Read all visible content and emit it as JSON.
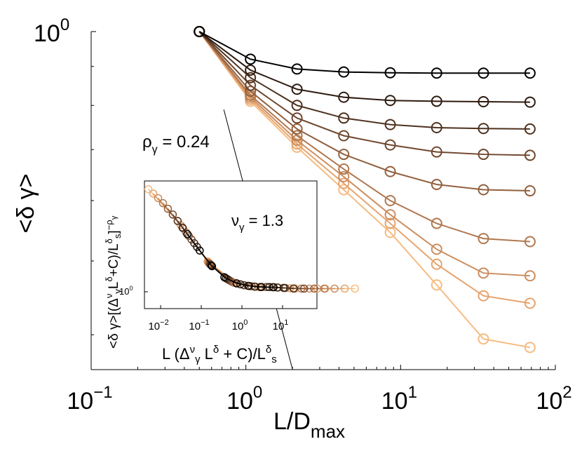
{
  "chart_data": [
    {
      "type": "line",
      "xlabel": "L/D",
      "xlabel_sub": "max",
      "ylabel": "<δ γ>",
      "xscale": "log",
      "yscale": "log",
      "xlim": [
        0.1,
        100
      ],
      "ylim": [
        0.36,
        1.0
      ],
      "x_ticks": [
        {
          "base": "10",
          "exp": "−1",
          "value": 0.1
        },
        {
          "base": "10",
          "exp": "0",
          "value": 1
        },
        {
          "base": "10",
          "exp": "1",
          "value": 10
        },
        {
          "base": "10",
          "exp": "2",
          "value": 100
        }
      ],
      "y_ticks": [
        {
          "base": "10",
          "exp": "0",
          "value": 1.0
        }
      ],
      "grid": false,
      "marker": "open-circle",
      "series": [
        {
          "color": "#000000",
          "x": [
            0.5,
            1.07,
            2.14,
            4.29,
            8.57,
            17.1,
            34.3,
            68.6
          ],
          "y": [
            1.0,
            0.92,
            0.893,
            0.885,
            0.883,
            0.882,
            0.882,
            0.882
          ]
        },
        {
          "color": "#2e1b10",
          "x": [
            0.5,
            1.07,
            2.14,
            4.29,
            8.57,
            17.1,
            34.3,
            68.6
          ],
          "y": [
            1.0,
            0.89,
            0.84,
            0.82,
            0.812,
            0.81,
            0.809,
            0.808
          ]
        },
        {
          "color": "#4f3220",
          "x": [
            0.5,
            1.07,
            2.14,
            4.29,
            8.57,
            17.1,
            34.3,
            68.6
          ],
          "y": [
            1.0,
            0.87,
            0.8,
            0.77,
            0.755,
            0.748,
            0.746,
            0.745
          ]
        },
        {
          "color": "#70482f",
          "x": [
            0.5,
            1.07,
            2.14,
            4.29,
            8.57,
            17.1,
            34.3,
            68.6
          ],
          "y": [
            1.0,
            0.85,
            0.77,
            0.73,
            0.71,
            0.695,
            0.69,
            0.688
          ]
        },
        {
          "color": "#92603e",
          "x": [
            0.5,
            1.07,
            2.14,
            4.29,
            8.57,
            17.1,
            34.3,
            68.6
          ],
          "y": [
            1.0,
            0.835,
            0.745,
            0.69,
            0.655,
            0.63,
            0.62,
            0.618
          ]
        },
        {
          "color": "#b07850",
          "x": [
            0.5,
            1.07,
            2.14,
            4.29,
            8.57,
            17.1,
            34.3,
            68.6
          ],
          "y": [
            1.0,
            0.825,
            0.73,
            0.66,
            0.6,
            0.56,
            0.535,
            0.53
          ]
        },
        {
          "color": "#cc8e60",
          "x": [
            0.5,
            1.07,
            2.14,
            4.29,
            8.57,
            17.1,
            34.3,
            68.6
          ],
          "y": [
            1.0,
            0.82,
            0.72,
            0.645,
            0.575,
            0.518,
            0.482,
            0.478
          ]
        },
        {
          "color": "#e6a46e",
          "x": [
            0.5,
            1.07,
            2.14,
            4.29,
            8.57,
            17.1,
            34.3,
            68.6
          ],
          "y": [
            1.0,
            0.815,
            0.712,
            0.632,
            0.56,
            0.495,
            0.45,
            0.44
          ]
        },
        {
          "color": "#f6bb80",
          "x": [
            0.5,
            1.07,
            2.14,
            4.29,
            8.57,
            17.1,
            34.3,
            68.6
          ],
          "y": [
            1.0,
            0.81,
            0.705,
            0.62,
            0.545,
            0.465,
            0.395,
            0.385
          ]
        }
      ],
      "slope_annotation": {
        "label": "ρ",
        "label_sub": "γ",
        "value_text": " = 0.24",
        "slope": -0.24,
        "x": [
          0.72,
          2.0
        ],
        "y_start": 0.79
      }
    },
    {
      "type": "scatter",
      "inset": true,
      "xlabel_parts": {
        "a": "L (Δ",
        "sup1": "ν",
        "sub1": "γ",
        "b": " L",
        "sup2": "δ",
        "c": " + C)/L",
        "sup3": "δ",
        "sub3": "s"
      },
      "ylabel_text": "<δ γ>[(Δ",
      "ylabel_parts": {
        "p1": "ν",
        "p2": "γ",
        "p3": "L",
        "p4": "δ",
        "p5": "+C)/L",
        "p6": "δ",
        "p7": "s",
        "p8": "]",
        "p9": "−ρ",
        "p10": "γ"
      },
      "annotation": {
        "label": "ν",
        "label_sub": "γ",
        "value_text": " = 1.3"
      },
      "xscale": "log",
      "yscale": "log",
      "xlim": [
        0.004,
        70
      ],
      "x_ticks": [
        {
          "base": "10",
          "exp": "−2",
          "value": 0.01
        },
        {
          "base": "10",
          "exp": "−1",
          "value": 0.1
        },
        {
          "base": "10",
          "exp": "0",
          "value": 1
        },
        {
          "base": "10",
          "exp": "1",
          "value": 10
        }
      ],
      "y_ticks": [
        {
          "base": "10",
          "exp": "0",
          "value": 1.0
        }
      ],
      "master_curve": {
        "x": [
          0.005,
          0.01,
          0.02,
          0.04,
          0.08,
          0.15,
          0.3,
          0.6,
          1.2,
          2.5,
          5,
          10,
          20,
          40
        ],
        "y": [
          1.9,
          1.77,
          1.62,
          1.46,
          1.32,
          1.2,
          1.11,
          1.06,
          1.04,
          1.03,
          1.03,
          1.025,
          1.02,
          1.02
        ]
      }
    }
  ]
}
